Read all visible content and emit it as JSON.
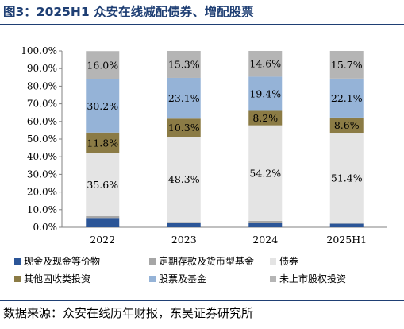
{
  "figure": {
    "title": "图3：2025H1 众安在线减配债券、增配股票",
    "source": "数据来源：众安在线历年财报，东吴证券研究所"
  },
  "chart_data": {
    "type": "bar",
    "stacked": true,
    "categories": [
      "2022",
      "2023",
      "2024",
      "2025H1"
    ],
    "ylim": [
      0,
      100
    ],
    "yticks": [
      "0.0%",
      "10.0%",
      "20.0%",
      "30.0%",
      "40.0%",
      "50.0%",
      "60.0%",
      "70.0%",
      "80.0%",
      "90.0%",
      "100.0%"
    ],
    "grid": false,
    "legend_position": "bottom",
    "series": [
      {
        "name": "现金及现金等价物",
        "color": "#2b5597",
        "values": [
          5.3,
          2.6,
          2.3,
          2.0
        ],
        "labels": [
          "",
          "",
          "",
          ""
        ]
      },
      {
        "name": "定期存款及货币型基金",
        "color": "#a6a6a6",
        "values": [
          1.0,
          0.4,
          1.3,
          0.2
        ],
        "labels": [
          "",
          "",
          "",
          ""
        ]
      },
      {
        "name": "债券",
        "color": "#e4e4e4",
        "values": [
          35.6,
          48.3,
          54.2,
          51.4
        ],
        "labels": [
          "35.6%",
          "48.3%",
          "54.2%",
          "51.4%"
        ]
      },
      {
        "name": "其他固收类投资",
        "color": "#8b7b45",
        "values": [
          11.8,
          10.3,
          8.2,
          8.6
        ],
        "labels": [
          "11.8%",
          "10.3%",
          "8.2%",
          "8.6%"
        ]
      },
      {
        "name": "股票及基金",
        "color": "#95b3d7",
        "values": [
          30.2,
          23.1,
          19.4,
          22.1
        ],
        "labels": [
          "30.2%",
          "23.1%",
          "19.4%",
          "22.1%"
        ]
      },
      {
        "name": "未上市股权投资",
        "color": "#b5b5b5",
        "values": [
          16.0,
          15.3,
          14.6,
          15.7
        ],
        "labels": [
          "16.0%",
          "15.3%",
          "14.6%",
          "15.7%"
        ]
      }
    ]
  }
}
